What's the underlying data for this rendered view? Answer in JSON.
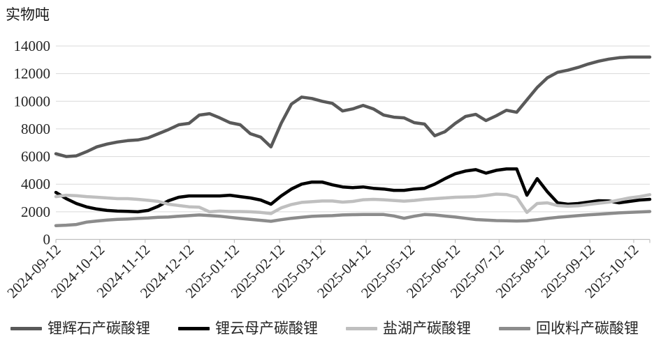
{
  "title": "实物吨",
  "colors": {
    "background": "#ffffff",
    "gridline": "#d9d9d9",
    "axis": "#bfbfbf",
    "text": "#262626",
    "series_spodumene": "#595959",
    "series_lepidolite": "#000000",
    "series_salt_lake": "#bfbfbf",
    "series_recycled": "#8c8c8c"
  },
  "chart_data": {
    "type": "line",
    "title": "实物吨",
    "xlabel": "",
    "ylabel": "实物吨",
    "ylim": [
      0,
      14000
    ],
    "y_ticks": [
      0,
      2000,
      4000,
      6000,
      8000,
      10000,
      12000,
      14000
    ],
    "grid": true,
    "legend_position": "bottom",
    "x_tick_labels": [
      "2024-09-12",
      "2024-10-12",
      "2024-11-12",
      "2024-12-12",
      "2025-01-12",
      "2025-02-12",
      "2025-03-12",
      "2025-04-12",
      "2025-05-12",
      "2025-06-12",
      "2025-07-12",
      "2025-08-12",
      "2025-09-12",
      "2025-10-12"
    ],
    "x": [
      "2024-09-12",
      "2024-09-19",
      "2024-09-26",
      "2024-10-03",
      "2024-10-10",
      "2024-10-17",
      "2024-10-24",
      "2024-10-31",
      "2024-11-07",
      "2024-11-14",
      "2024-11-21",
      "2024-11-28",
      "2024-12-05",
      "2024-12-12",
      "2024-12-19",
      "2024-12-26",
      "2025-01-02",
      "2025-01-09",
      "2025-01-16",
      "2025-01-23",
      "2025-01-30",
      "2025-02-06",
      "2025-02-13",
      "2025-02-20",
      "2025-02-27",
      "2025-03-06",
      "2025-03-13",
      "2025-03-20",
      "2025-03-27",
      "2025-04-03",
      "2025-04-10",
      "2025-04-17",
      "2025-04-24",
      "2025-05-01",
      "2025-05-08",
      "2025-05-15",
      "2025-05-22",
      "2025-05-29",
      "2025-06-05",
      "2025-06-12",
      "2025-06-19",
      "2025-06-26",
      "2025-07-03",
      "2025-07-10",
      "2025-07-17",
      "2025-07-24",
      "2025-07-31",
      "2025-08-07",
      "2025-08-14",
      "2025-08-21",
      "2025-08-28",
      "2025-09-04",
      "2025-09-11",
      "2025-09-18",
      "2025-09-25",
      "2025-10-02",
      "2025-10-09",
      "2025-10-16",
      "2025-10-23"
    ],
    "series": [
      {
        "id": "spodumene",
        "name": "锂辉石产碳酸锂",
        "color": "#595959",
        "values": [
          6200,
          6000,
          6050,
          6350,
          6700,
          6900,
          7050,
          7150,
          7200,
          7350,
          7650,
          7950,
          8300,
          8400,
          9000,
          9100,
          8800,
          8450,
          8300,
          7650,
          7400,
          6700,
          8400,
          9800,
          10300,
          10200,
          10000,
          9850,
          9300,
          9450,
          9700,
          9450,
          9000,
          8850,
          8800,
          8450,
          8350,
          7500,
          7800,
          8400,
          8900,
          9050,
          8600,
          8950,
          9350,
          9200,
          10100,
          11000,
          11700,
          12100,
          12250,
          12450,
          12700,
          12900,
          13050,
          13150,
          13200,
          13200,
          13200
        ]
      },
      {
        "id": "lepidolite",
        "name": "锂云母产碳酸锂",
        "color": "#000000",
        "values": [
          3400,
          2950,
          2600,
          2350,
          2200,
          2100,
          2050,
          2030,
          2000,
          2100,
          2400,
          2800,
          3050,
          3150,
          3150,
          3150,
          3150,
          3200,
          3100,
          3000,
          2850,
          2550,
          3150,
          3650,
          4000,
          4150,
          4150,
          3950,
          3800,
          3750,
          3800,
          3700,
          3650,
          3550,
          3550,
          3650,
          3700,
          4000,
          4400,
          4750,
          4950,
          5050,
          4800,
          5000,
          5100,
          5100,
          3200,
          4400,
          3450,
          2650,
          2550,
          2600,
          2700,
          2800,
          2780,
          2650,
          2750,
          2850,
          2900
        ]
      },
      {
        "id": "salt-lake",
        "name": "盐湖产碳酸锂",
        "color": "#bfbfbf",
        "values": [
          3100,
          3200,
          3170,
          3100,
          3050,
          3000,
          2950,
          2950,
          2900,
          2830,
          2750,
          2550,
          2450,
          2360,
          2330,
          2000,
          2050,
          2020,
          2020,
          2000,
          1950,
          1870,
          2280,
          2530,
          2680,
          2730,
          2780,
          2780,
          2700,
          2750,
          2870,
          2900,
          2870,
          2820,
          2770,
          2820,
          2900,
          2950,
          3000,
          3050,
          3070,
          3100,
          3180,
          3280,
          3250,
          3050,
          1950,
          2600,
          2650,
          2450,
          2400,
          2430,
          2530,
          2620,
          2700,
          2850,
          3000,
          3100,
          3240
        ]
      },
      {
        "id": "recycled",
        "name": "回收料产碳酸锂",
        "color": "#8c8c8c",
        "values": [
          1000,
          1030,
          1080,
          1250,
          1330,
          1400,
          1450,
          1480,
          1520,
          1550,
          1600,
          1620,
          1680,
          1720,
          1770,
          1730,
          1680,
          1600,
          1520,
          1450,
          1380,
          1310,
          1430,
          1530,
          1600,
          1670,
          1700,
          1720,
          1770,
          1790,
          1800,
          1800,
          1800,
          1700,
          1530,
          1680,
          1800,
          1770,
          1690,
          1620,
          1530,
          1440,
          1400,
          1360,
          1350,
          1330,
          1350,
          1430,
          1520,
          1600,
          1660,
          1720,
          1780,
          1820,
          1870,
          1920,
          1950,
          1990,
          2020
        ]
      }
    ]
  }
}
